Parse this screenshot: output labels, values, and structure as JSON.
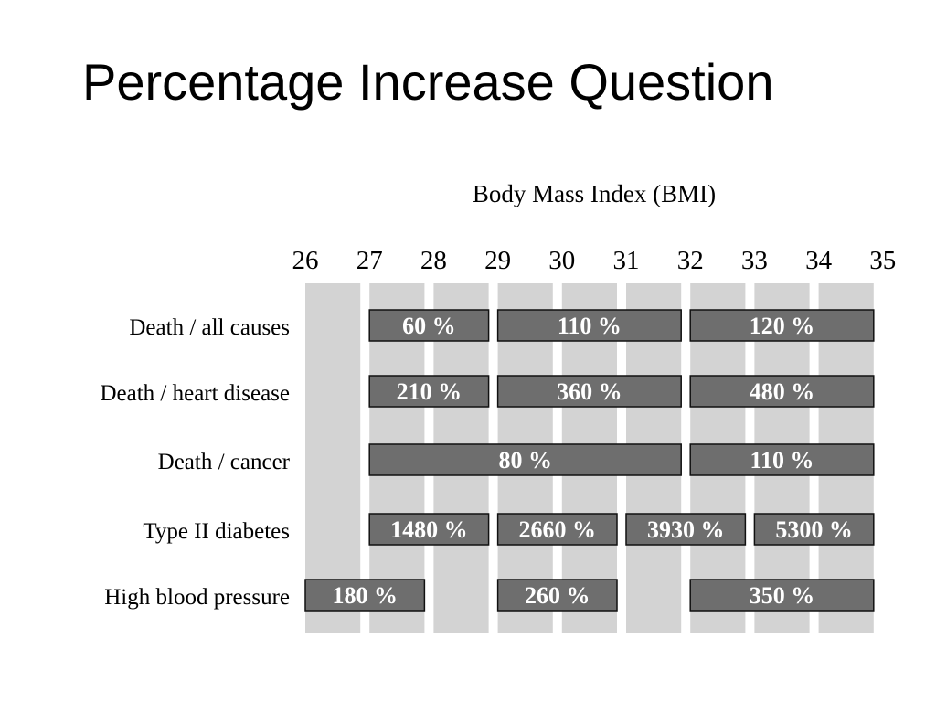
{
  "slide": {
    "title": "Percentage Increase Question"
  },
  "chart_data": {
    "type": "bar",
    "title": "Percentage Increase Question",
    "xlabel": "Body Mass Index (BMI)",
    "ylabel": "",
    "xlim": [
      26,
      35
    ],
    "x_ticks": [
      26,
      27,
      28,
      29,
      30,
      31,
      32,
      33,
      34,
      35
    ],
    "grid": true,
    "colors": {
      "segment": "#6e6e6e",
      "segment_border": "#111111",
      "band": "#d3d3d3",
      "segment_text": "#ffffff"
    },
    "rows": [
      {
        "label": "Death / all causes",
        "segments": [
          {
            "from": 27,
            "to": 29,
            "label": "60 %"
          },
          {
            "from": 29,
            "to": 32,
            "label": "110 %"
          },
          {
            "from": 32,
            "to": 35,
            "label": "120 %"
          }
        ]
      },
      {
        "label": "Death / heart disease",
        "segments": [
          {
            "from": 27,
            "to": 29,
            "label": "210 %"
          },
          {
            "from": 29,
            "to": 32,
            "label": "360 %"
          },
          {
            "from": 32,
            "to": 35,
            "label": "480 %"
          }
        ]
      },
      {
        "label": "Death / cancer",
        "segments": [
          {
            "from": 27,
            "to": 32,
            "label": "80 %"
          },
          {
            "from": 32,
            "to": 35,
            "label": "110 %"
          }
        ]
      },
      {
        "label": "Type II diabetes",
        "segments": [
          {
            "from": 27,
            "to": 29,
            "label": "1480 %"
          },
          {
            "from": 29,
            "to": 31,
            "label": "2660 %"
          },
          {
            "from": 31,
            "to": 33,
            "label": "3930 %"
          },
          {
            "from": 33,
            "to": 35,
            "label": "5300 %"
          }
        ]
      },
      {
        "label": "High blood pressure",
        "segments": [
          {
            "from": 26,
            "to": 28,
            "label": "180 %"
          },
          {
            "from": 29,
            "to": 31,
            "label": "260 %"
          },
          {
            "from": 32,
            "to": 35,
            "label": "350 %"
          }
        ]
      }
    ]
  }
}
